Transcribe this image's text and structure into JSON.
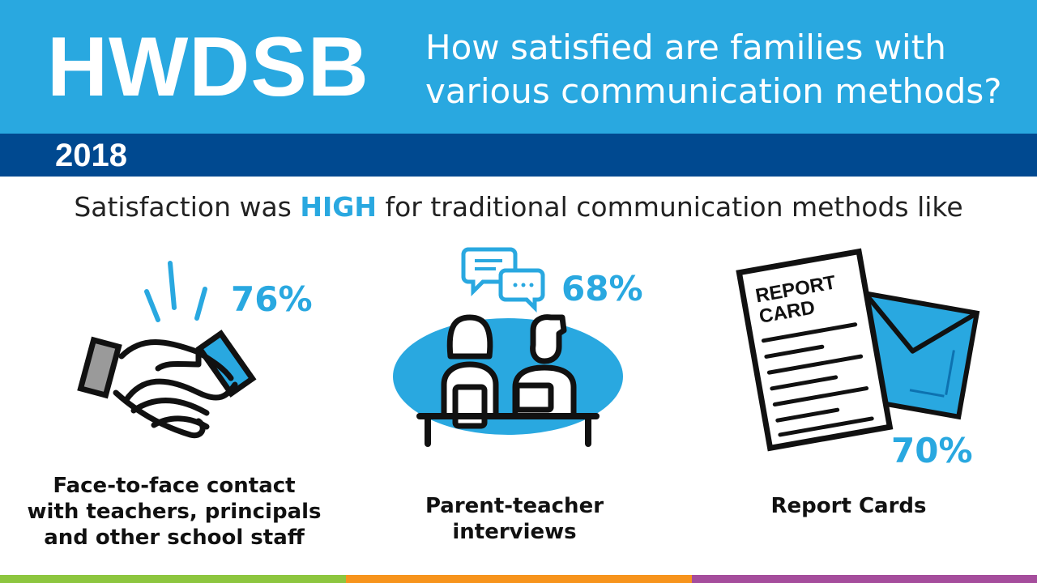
{
  "header": {
    "logo": "HWDSB",
    "question_line1": "How satisfied are families with",
    "question_line2": "various communication methods?"
  },
  "year": "2018",
  "subtitle": {
    "before": "Satisfaction was ",
    "highlight": "HIGH",
    "after": " for traditional communication methods like"
  },
  "items": [
    {
      "percent": "76%",
      "caption_lines": [
        "Face-to-face contact",
        "with teachers, principals",
        "and other school staff"
      ],
      "icon": "handshake-icon"
    },
    {
      "percent": "68%",
      "caption_lines": [
        "Parent-teacher",
        "interviews"
      ],
      "icon": "parent-teacher-meeting-icon"
    },
    {
      "percent": "70%",
      "caption_lines": [
        "Report Cards"
      ],
      "icon": "report-card-icon",
      "icon_text": [
        "REPORT",
        "CARD"
      ]
    }
  ],
  "colors": {
    "header_blue": "#29a8e0",
    "year_bar_navy": "#004990",
    "accent": "#29a8e0",
    "footer_green": "#8dc63f",
    "footer_orange": "#f7941d",
    "footer_purple": "#a54d9c"
  }
}
